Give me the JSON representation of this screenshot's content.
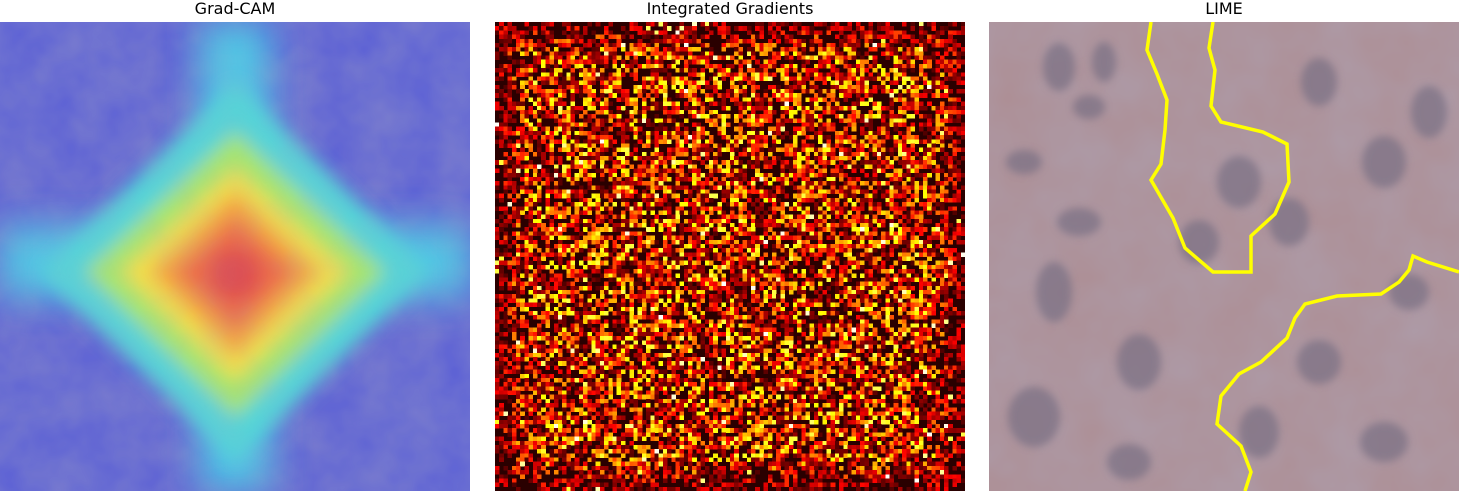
{
  "panels": [
    {
      "title": "Grad-CAM",
      "kind": "heatmap-overlay",
      "colormap": "jet"
    },
    {
      "title": "Integrated Gradients",
      "kind": "attribution-map",
      "colormap": "hot"
    },
    {
      "title": "LIME",
      "kind": "superpixel-boundary",
      "boundary_color": "#ffff00",
      "background_color": "#a8888f"
    }
  ]
}
